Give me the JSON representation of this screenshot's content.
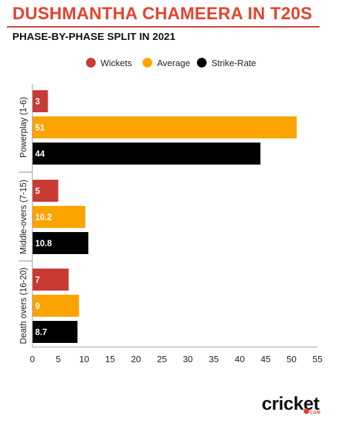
{
  "header": {
    "title": "DUSHMANTHA CHAMEERA IN T20S",
    "subtitle": "PHASE-BY-PHASE SPLIT IN 2021"
  },
  "brand": {
    "logo_text": "cricket",
    "logo_tag": "COM"
  },
  "colors": {
    "title": "#e5432e",
    "wickets": "#c93a34",
    "average": "#fba400",
    "strike_rate": "#000000",
    "rule": "#c93a34"
  },
  "chart_data": {
    "type": "bar",
    "orientation": "horizontal",
    "categories": [
      "Powerplay (1-6)",
      "Middle-overs (7-15)",
      "Death overs (16-20)"
    ],
    "series": [
      {
        "name": "Wickets",
        "values": [
          3,
          5,
          7
        ]
      },
      {
        "name": "Average",
        "values": [
          51,
          10.2,
          9
        ]
      },
      {
        "name": "Strike-Rate",
        "values": [
          44,
          10.8,
          8.7
        ]
      }
    ],
    "data_labels": [
      [
        "3",
        "51",
        "44"
      ],
      [
        "5",
        "10.2",
        "10.8"
      ],
      [
        "7",
        "9",
        "8.7"
      ]
    ],
    "xlim": [
      0,
      55
    ],
    "xticks": [
      "0",
      "5",
      "10",
      "15",
      "20",
      "25",
      "30",
      "35",
      "40",
      "45",
      "50",
      "55"
    ],
    "grid": false,
    "legend_position": "top"
  }
}
